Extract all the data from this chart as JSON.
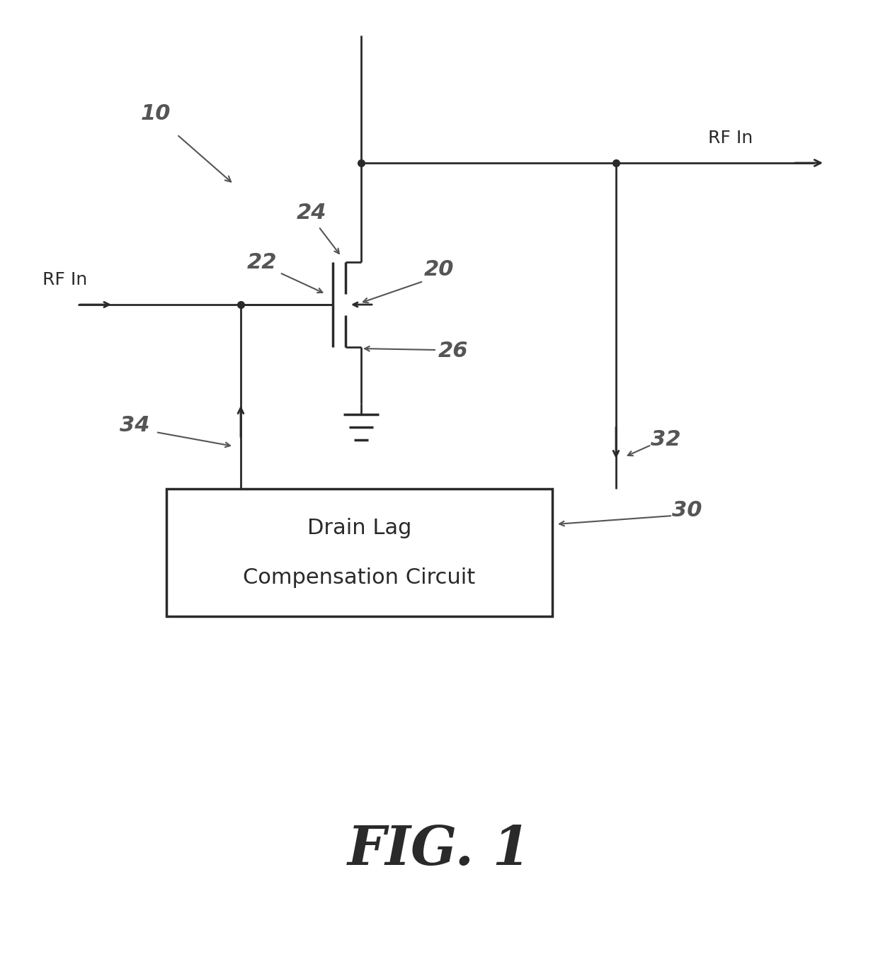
{
  "title": "FIG. 1",
  "box_label_line1": "Drain Lag",
  "box_label_line2": "Compensation Circuit",
  "bg_color": "#ffffff",
  "line_color": "#2a2a2a",
  "label_color": "#555555",
  "fig_title_color": "#2a2a2a",
  "ref_10": "10",
  "ref_20": "20",
  "ref_22": "22",
  "ref_24": "24",
  "ref_26": "26",
  "ref_30": "30",
  "ref_32": "32",
  "ref_34": "34",
  "rf_in_upper": "RF In",
  "rf_in_lower": "RF In",
  "figsize": [
    12.4,
    13.82
  ],
  "dpi": 100
}
